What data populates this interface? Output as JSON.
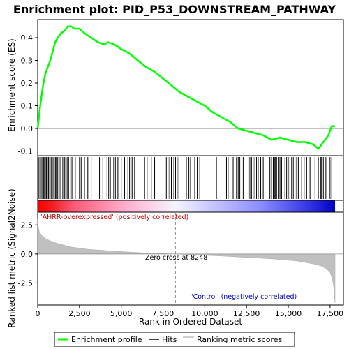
{
  "chart_data": {
    "type": "line",
    "title": "Enrichment plot: PID_P53_DOWNSTREAM_PATHWAY",
    "colors": {
      "es_line": "#00ff00",
      "hits": "#000000",
      "metric_fill": "#c0c0c0",
      "zero_line": "#808080",
      "pos_label": "#cc0000",
      "neg_label": "#0000cc"
    },
    "es_panel": {
      "ylabel": "Enrichment score (ES)",
      "ylim": [
        -0.12,
        0.48
      ],
      "yticks": [
        {
          "v": -0.1,
          "label": "-0.1"
        },
        {
          "v": 0.0,
          "label": "0.0"
        },
        {
          "v": 0.1,
          "label": "0.1"
        },
        {
          "v": 0.2,
          "label": "0.2"
        },
        {
          "v": 0.3,
          "label": "0.3"
        },
        {
          "v": 0.4,
          "label": "0.4"
        }
      ],
      "series": [
        {
          "x": [
            0,
            150,
            300,
            450,
            600,
            750,
            900,
            1050,
            1200,
            1400,
            1600,
            1800,
            2000,
            2200,
            2500,
            2800,
            3200,
            3600,
            4000,
            4200,
            4600,
            5000,
            5500,
            6000,
            6500,
            7000,
            7500,
            8000,
            8500,
            9000,
            9500,
            10000,
            10500,
            11000,
            11500,
            12000,
            12500,
            13000,
            13500,
            14000,
            14500,
            15000,
            15500,
            16000,
            16500,
            16800,
            17000,
            17200,
            17400,
            17600,
            17800
          ],
          "y": [
            0.0,
            0.1,
            0.18,
            0.24,
            0.27,
            0.3,
            0.34,
            0.38,
            0.4,
            0.42,
            0.43,
            0.45,
            0.45,
            0.44,
            0.44,
            0.42,
            0.4,
            0.38,
            0.37,
            0.38,
            0.37,
            0.35,
            0.33,
            0.3,
            0.27,
            0.25,
            0.22,
            0.19,
            0.16,
            0.14,
            0.12,
            0.1,
            0.07,
            0.05,
            0.03,
            0.0,
            -0.01,
            -0.02,
            -0.03,
            -0.05,
            -0.04,
            -0.05,
            -0.06,
            -0.06,
            -0.07,
            -0.09,
            -0.07,
            -0.05,
            -0.03,
            0.01,
            0.01
          ]
        }
      ]
    },
    "hits": [
      50,
      130,
      210,
      290,
      350,
      410,
      460,
      520,
      580,
      650,
      720,
      800,
      850,
      920,
      990,
      1060,
      1120,
      1200,
      1290,
      1380,
      1500,
      1600,
      1680,
      1760,
      1850,
      1950,
      2050,
      2250,
      2500,
      2600,
      2800,
      3000,
      3200,
      3700,
      3900,
      4150,
      4250,
      4350,
      4450,
      4550,
      4650,
      4800,
      5000,
      5200,
      5400,
      5500,
      5650,
      5800,
      6400,
      6550,
      6800,
      7000,
      7700,
      7800,
      7900,
      8000,
      8150,
      8250,
      8350,
      8450,
      8900,
      9050,
      9150,
      9400,
      9550,
      9700,
      10700,
      10800,
      11300,
      11400,
      11700,
      11900,
      12000,
      12100,
      12300,
      12600,
      12700,
      12800,
      12900,
      13000,
      13100,
      13200,
      13350,
      13500,
      13900,
      14000,
      14100,
      14150,
      14200,
      14250,
      14300,
      14400,
      14500,
      14600,
      14800,
      14900,
      15000,
      15100,
      15200,
      15300,
      15400,
      15500,
      15600,
      15800,
      15950,
      16100,
      16300,
      16600,
      16800,
      16950,
      17000,
      17100,
      17250,
      17500,
      17600
    ],
    "metric_panel": {
      "ylabel": "Ranked list metric (Signal2Noise)",
      "ylim": [
        -4.4,
        3.6
      ],
      "yticks": [
        {
          "v": 2.5,
          "label": "2.5"
        },
        {
          "v": 0.0,
          "label": "0.0"
        },
        {
          "v": -2.5,
          "label": "-2.5"
        }
      ],
      "x": [
        0,
        30,
        100,
        250,
        500,
        800,
        1200,
        2000,
        3000,
        4500,
        6000,
        7500,
        8248,
        9500,
        11000,
        12500,
        14000,
        15500,
        16500,
        17000,
        17300,
        17500,
        17600,
        17700,
        17750,
        17800
      ],
      "values": [
        3.0,
        2.4,
        1.9,
        1.6,
        1.3,
        1.1,
        0.9,
        0.6,
        0.4,
        0.25,
        0.12,
        0.04,
        0.0,
        -0.08,
        -0.18,
        -0.3,
        -0.42,
        -0.6,
        -0.85,
        -1.05,
        -1.3,
        -1.6,
        -2.0,
        -2.6,
        -3.3,
        -4.2
      ],
      "zero_cross_label": "Zero cross at 8248",
      "zero_cross_x": 8248,
      "pos_label": "'AHRR-overexpressed' (positively correlated)",
      "neg_label": "'Control' (negatively correlated)"
    },
    "xlabel": "Rank in Ordered Dataset",
    "xlim": [
      0,
      18300
    ],
    "xticks": [
      {
        "v": 0,
        "label": "0"
      },
      {
        "v": 2500,
        "label": "2,500"
      },
      {
        "v": 5000,
        "label": "5,000"
      },
      {
        "v": 7500,
        "label": "7,500"
      },
      {
        "v": 10000,
        "label": "10,000"
      },
      {
        "v": 12500,
        "label": "12,500"
      },
      {
        "v": 15000,
        "label": "15,000"
      },
      {
        "v": 17500,
        "label": "17,500"
      }
    ],
    "legend": {
      "placement": "bottom",
      "entries": [
        "Enrichment profile",
        "Hits",
        "Ranking metric scores"
      ]
    }
  }
}
